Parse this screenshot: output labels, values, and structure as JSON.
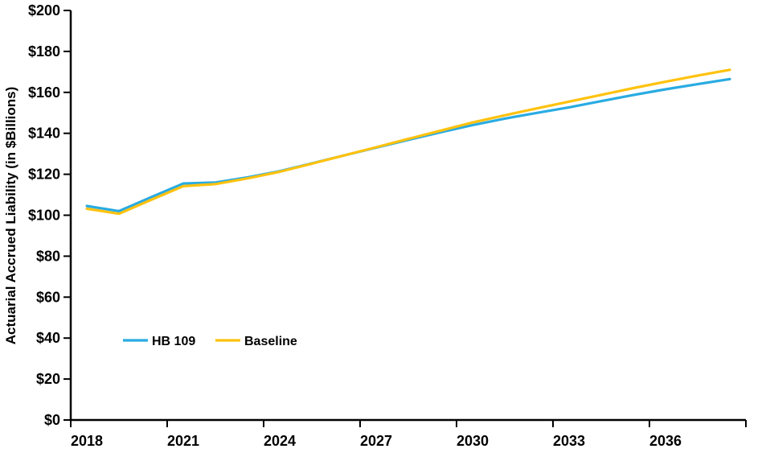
{
  "chart_data": {
    "type": "line",
    "title": "",
    "xlabel": "",
    "ylabel": "Actuarial Accrued Liability (in $Billions)",
    "x": [
      2018,
      2019,
      2020,
      2021,
      2022,
      2023,
      2024,
      2025,
      2026,
      2027,
      2028,
      2029,
      2030,
      2031,
      2032,
      2033,
      2034,
      2035,
      2036,
      2037,
      2038
    ],
    "x_tick_labels": [
      "2018",
      "2021",
      "2024",
      "2027",
      "2030",
      "2033",
      "2036"
    ],
    "x_tick_interval_years": 3,
    "ylim": [
      0,
      200
    ],
    "y_tick_values": [
      0,
      20,
      40,
      60,
      80,
      100,
      120,
      140,
      160,
      180,
      200
    ],
    "y_tick_labels": [
      "$0",
      "$20",
      "$40",
      "$60",
      "$80",
      "$100",
      "$120",
      "$140",
      "$160",
      "$180",
      "$200"
    ],
    "grid": false,
    "background": "#FFFFFF",
    "axis_color": "#000000",
    "legend": {
      "position": "inside-lower-left",
      "entries": [
        "HB 109",
        "Baseline"
      ]
    },
    "series": [
      {
        "name": "HB 109",
        "color": "#29ABE2",
        "values": [
          104.5,
          102.0,
          108.8,
          115.5,
          116.0,
          118.5,
          121.5,
          125.3,
          129.2,
          133.0,
          136.8,
          140.5,
          144.0,
          147.2,
          150.0,
          152.7,
          155.7,
          158.7,
          161.5,
          164.0,
          166.5
        ]
      },
      {
        "name": "Baseline",
        "color": "#FFC20E",
        "values": [
          103.2,
          100.7,
          107.5,
          114.2,
          115.2,
          118.0,
          121.2,
          125.2,
          129.2,
          133.2,
          137.3,
          141.3,
          145.3,
          148.8,
          152.2,
          155.5,
          158.8,
          162.1,
          165.2,
          168.2,
          171.0
        ]
      }
    ]
  }
}
